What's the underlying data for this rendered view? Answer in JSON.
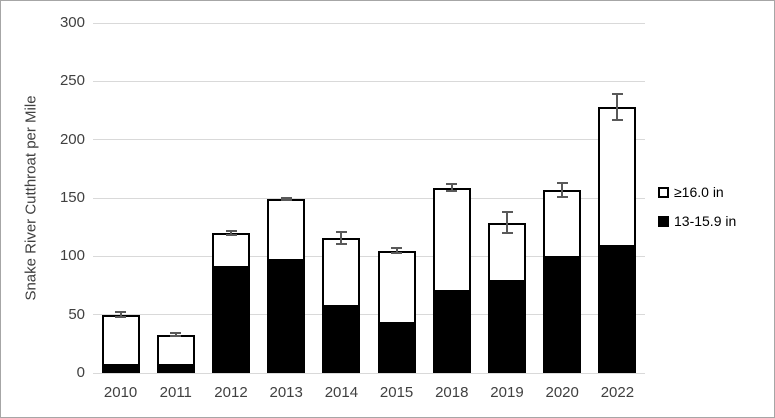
{
  "chart_data": {
    "type": "bar",
    "stacked": true,
    "title": "",
    "xlabel": "",
    "ylabel": "Snake River Cutthroat per Mile",
    "ylim": [
      0,
      300
    ],
    "yticks": [
      0,
      50,
      100,
      150,
      200,
      250,
      300
    ],
    "grid": true,
    "legend_position": "right",
    "categories": [
      "2010",
      "2011",
      "2012",
      "2013",
      "2014",
      "2015",
      "2018",
      "2019",
      "2020",
      "2022"
    ],
    "series": [
      {
        "name": "13-15.9 in",
        "color": "#000000",
        "values": [
          8,
          8,
          92,
          98,
          58,
          44,
          71,
          80,
          100,
          110
        ]
      },
      {
        "name": "≥16.0 in",
        "color": "#ffffff",
        "values": [
          42,
          25,
          28,
          51,
          58,
          61,
          88,
          49,
          57,
          118
        ]
      }
    ],
    "totals": [
      50,
      33,
      120,
      149,
      116,
      105,
      159,
      129,
      157,
      228
    ],
    "error_bars": {
      "plus_minus": [
        2,
        1,
        2,
        1,
        5,
        2,
        3,
        9,
        6,
        11
      ],
      "color": "#595959"
    },
    "legend": [
      {
        "label": "≥16.0 in",
        "swatch": "white-square"
      },
      {
        "label": "13-15.9 in",
        "swatch": "black-square"
      }
    ],
    "colors": {
      "gridline": "#d9d9d9",
      "bar_fill_dark": "#000000",
      "bar_fill_light": "#ffffff",
      "bar_border": "#000000",
      "error_bar": "#595959",
      "text": "#404040",
      "frame_border": "#a6a6a6",
      "background": "#ffffff"
    }
  }
}
